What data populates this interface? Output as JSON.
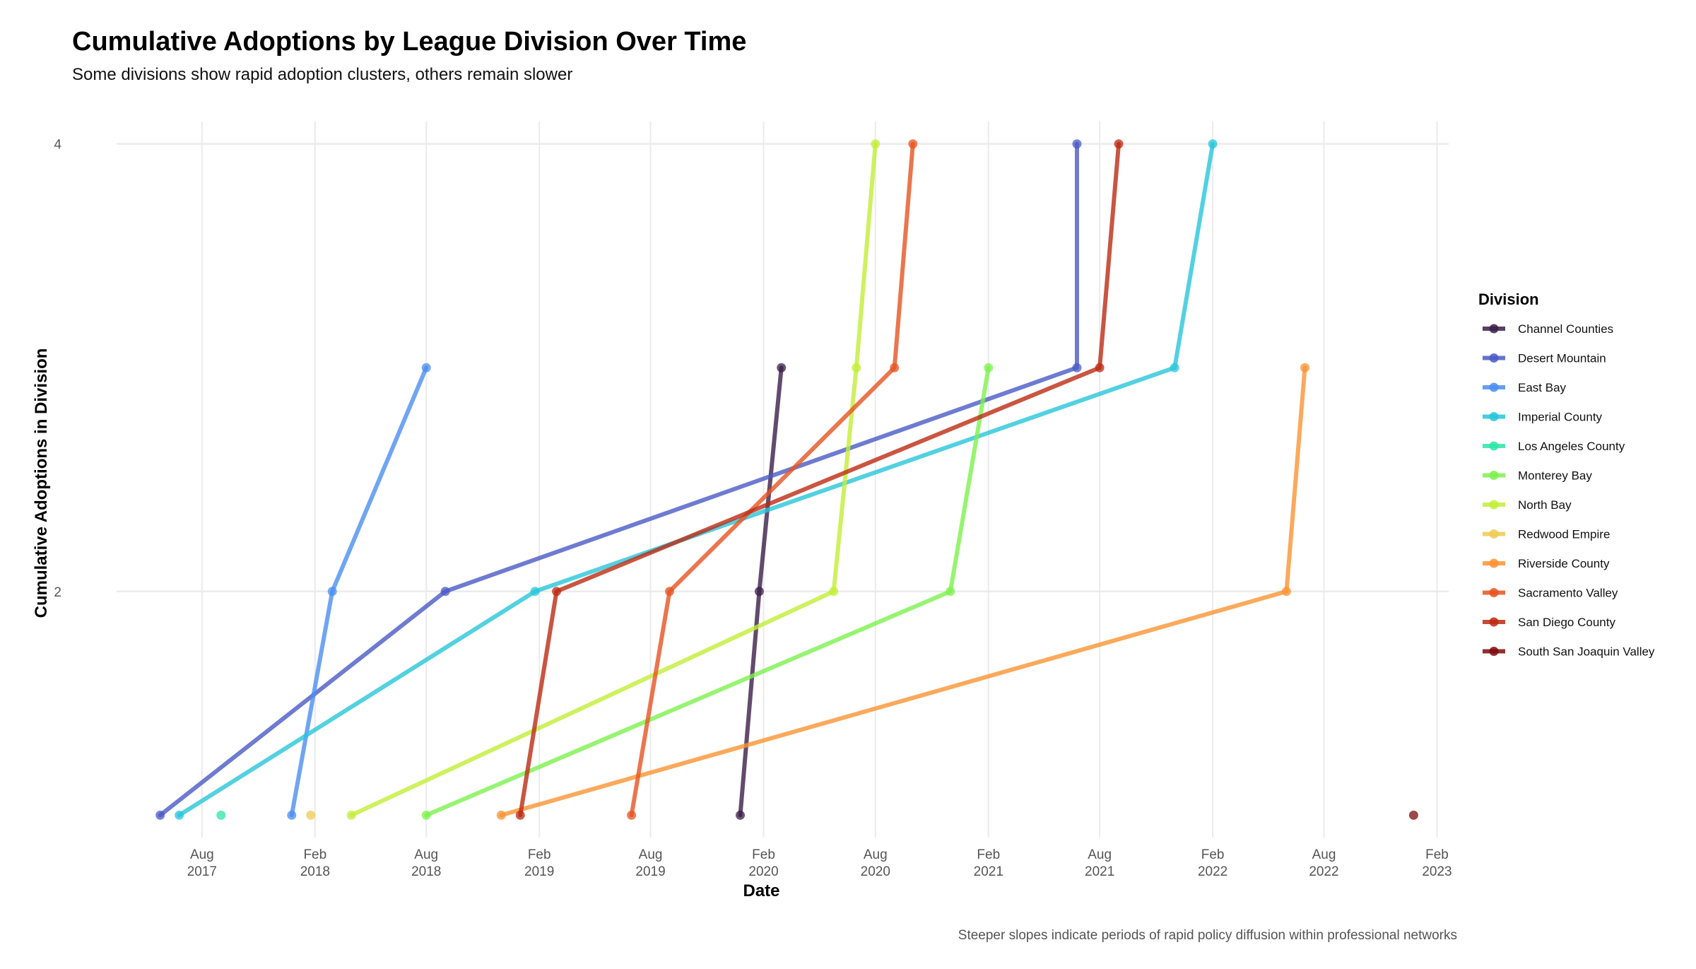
{
  "title": "Cumulative Adoptions by League Division Over Time",
  "subtitle": "Some divisions show rapid adoption clusters, others remain slower",
  "caption": "Steeper slopes indicate periods of rapid policy diffusion within professional networks",
  "chart_data": {
    "type": "line",
    "xlabel": "Date",
    "ylabel": "Cumulative Adoptions in Division",
    "xlim": [
      "2017-03-15",
      "2023-02-20"
    ],
    "ylim": [
      0.9,
      4.1
    ],
    "x_ticks": [
      {
        "date": "2017-08-01",
        "label": [
          "Aug",
          "2017"
        ]
      },
      {
        "date": "2018-02-01",
        "label": [
          "Feb",
          "2018"
        ]
      },
      {
        "date": "2018-08-01",
        "label": [
          "Aug",
          "2018"
        ]
      },
      {
        "date": "2019-02-01",
        "label": [
          "Feb",
          "2019"
        ]
      },
      {
        "date": "2019-08-01",
        "label": [
          "Aug",
          "2019"
        ]
      },
      {
        "date": "2020-02-01",
        "label": [
          "Feb",
          "2020"
        ]
      },
      {
        "date": "2020-08-01",
        "label": [
          "Aug",
          "2020"
        ]
      },
      {
        "date": "2021-02-01",
        "label": [
          "Feb",
          "2021"
        ]
      },
      {
        "date": "2021-08-01",
        "label": [
          "Aug",
          "2021"
        ]
      },
      {
        "date": "2022-02-01",
        "label": [
          "Feb",
          "2022"
        ]
      },
      {
        "date": "2022-08-01",
        "label": [
          "Aug",
          "2022"
        ]
      },
      {
        "date": "2023-02-01",
        "label": [
          "Feb",
          "2023"
        ]
      }
    ],
    "y_ticks": [
      2,
      4
    ],
    "grid": true,
    "legend": {
      "title": "Division",
      "placement": "right"
    },
    "series": [
      {
        "name": "Channel Counties",
        "color": "#3B1E48",
        "points": [
          [
            "2019-12-25",
            1
          ],
          [
            "2020-01-25",
            2
          ],
          [
            "2020-03-01",
            3
          ]
        ]
      },
      {
        "name": "Desert Mountain",
        "color": "#4A5AC6",
        "points": [
          [
            "2017-05-25",
            1
          ],
          [
            "2018-09-01",
            2
          ],
          [
            "2021-06-25",
            3
          ],
          [
            "2021-06-25",
            4
          ]
        ]
      },
      {
        "name": "East Bay",
        "color": "#4B8EF0",
        "points": [
          [
            "2017-12-25",
            1
          ],
          [
            "2018-03-01",
            2
          ],
          [
            "2018-08-01",
            3
          ]
        ]
      },
      {
        "name": "Imperial County",
        "color": "#27C6DA",
        "points": [
          [
            "2017-06-25",
            1
          ],
          [
            "2019-01-25",
            2
          ],
          [
            "2021-12-01",
            3
          ],
          [
            "2022-02-01",
            4
          ]
        ]
      },
      {
        "name": "Los Angeles County",
        "color": "#2EE5A8",
        "points": [
          [
            "2017-09-01",
            1
          ]
        ]
      },
      {
        "name": "Monterey Bay",
        "color": "#7CF14E",
        "points": [
          [
            "2018-08-01",
            1
          ],
          [
            "2020-12-01",
            2
          ],
          [
            "2021-02-01",
            3
          ]
        ]
      },
      {
        "name": "North Bay",
        "color": "#C2EE36",
        "points": [
          [
            "2018-04-01",
            1
          ],
          [
            "2020-05-25",
            2
          ],
          [
            "2020-07-01",
            3
          ],
          [
            "2020-08-01",
            4
          ]
        ]
      },
      {
        "name": "Redwood Empire",
        "color": "#EFCB52",
        "points": [
          [
            "2018-01-25",
            1
          ]
        ]
      },
      {
        "name": "Riverside County",
        "color": "#FA9333",
        "points": [
          [
            "2018-12-01",
            1
          ],
          [
            "2022-06-01",
            2
          ],
          [
            "2022-07-01",
            3
          ]
        ]
      },
      {
        "name": "Sacramento Valley",
        "color": "#E65420",
        "points": [
          [
            "2019-07-01",
            1
          ],
          [
            "2019-09-01",
            2
          ],
          [
            "2020-09-01",
            3
          ],
          [
            "2020-10-01",
            4
          ]
        ]
      },
      {
        "name": "San Diego County",
        "color": "#BC2A13",
        "points": [
          [
            "2019-01-01",
            1
          ],
          [
            "2019-03-01",
            2
          ],
          [
            "2021-08-01",
            3
          ],
          [
            "2021-09-01",
            4
          ]
        ]
      },
      {
        "name": "South San Joaquin Valley",
        "color": "#7E0B0A",
        "points": [
          [
            "2022-12-25",
            1
          ]
        ]
      }
    ]
  }
}
